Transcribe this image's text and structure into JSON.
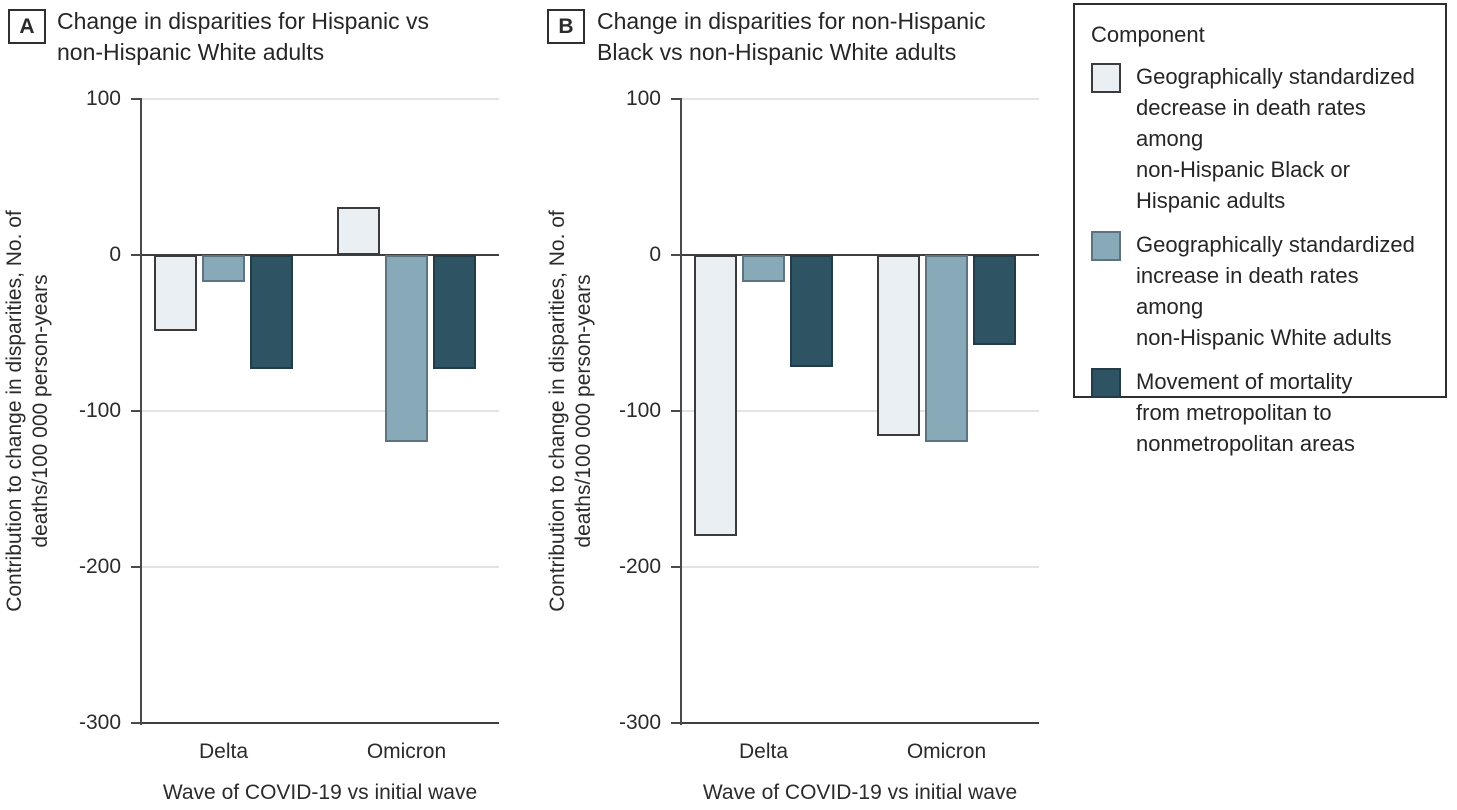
{
  "figure": {
    "panels": [
      {
        "label": "A",
        "title_lines": [
          "Change in disparities for Hispanic vs",
          "non-Hispanic White adults"
        ],
        "ylabel_lines": [
          "Contribution to change in disparities, No. of",
          "deaths/100 000 person-years"
        ],
        "xlabel": "Wave of COVID-19 vs initial wave"
      },
      {
        "label": "B",
        "title_lines": [
          "Change in disparities for non-Hispanic",
          "Black vs non-Hispanic White adults"
        ],
        "ylabel_lines": [
          "Contribution to change in disparities, No. of",
          "deaths/100 000 person-years"
        ],
        "xlabel": "Wave of COVID-19 vs initial wave"
      }
    ],
    "legend": {
      "title": "Component",
      "items": [
        {
          "color_key": "light",
          "lines": [
            "Geographically standardized",
            "decrease in death rates among",
            "non-Hispanic Black or",
            "Hispanic adults"
          ]
        },
        {
          "color_key": "medium",
          "lines": [
            "Geographically standardized",
            "increase in death rates among",
            "non-Hispanic White adults"
          ]
        },
        {
          "color_key": "dark",
          "lines": [
            "Movement of mortality",
            "from metropolitan to",
            "nonmetropolitan areas"
          ]
        }
      ]
    },
    "colors": {
      "light": {
        "fill": "#e9eff3",
        "stroke": "#3b3b3b"
      },
      "medium": {
        "fill": "#87a9b8",
        "stroke": "#5d7480"
      },
      "dark": {
        "fill": "#2e5362",
        "stroke": "#233c47"
      }
    }
  },
  "chart_data": [
    {
      "type": "bar",
      "panel": "A",
      "title": "Change in disparities for Hispanic vs non-Hispanic White adults",
      "xlabel": "Wave of COVID-19 vs initial wave",
      "ylabel": "Contribution to change in disparities, No. of deaths/100 000 person-years",
      "categories": [
        "Delta",
        "Omicron"
      ],
      "series": [
        {
          "name": "Geographically standardized decrease in death rates among non-Hispanic Black or Hispanic adults",
          "key": "light",
          "values": [
            -49,
            31
          ]
        },
        {
          "name": "Geographically standardized increase in death rates among non-Hispanic White adults",
          "key": "medium",
          "values": [
            -17,
            -120
          ]
        },
        {
          "name": "Movement of mortality from metropolitan to nonmetropolitan areas",
          "key": "dark",
          "values": [
            -73,
            -73
          ]
        }
      ],
      "ylim": [
        -300,
        100
      ],
      "yticks": [
        100,
        0,
        -100,
        -200,
        -300
      ],
      "grid": true,
      "legend_position": "right"
    },
    {
      "type": "bar",
      "panel": "B",
      "title": "Change in disparities for non-Hispanic Black vs non-Hispanic White adults",
      "xlabel": "Wave of COVID-19 vs initial wave",
      "ylabel": "Contribution to change in disparities, No. of deaths/100 000 person-years",
      "categories": [
        "Delta",
        "Omicron"
      ],
      "series": [
        {
          "name": "Geographically standardized decrease in death rates among non-Hispanic Black or Hispanic adults",
          "key": "light",
          "values": [
            -180,
            -116
          ]
        },
        {
          "name": "Geographically standardized increase in death rates among non-Hispanic White adults",
          "key": "medium",
          "values": [
            -17,
            -120
          ]
        },
        {
          "name": "Movement of mortality from metropolitan to nonmetropolitan areas",
          "key": "dark",
          "values": [
            -72,
            -58
          ]
        }
      ],
      "ylim": [
        -300,
        100
      ],
      "yticks": [
        100,
        0,
        -100,
        -200,
        -300
      ],
      "grid": true,
      "legend_position": "right"
    }
  ]
}
